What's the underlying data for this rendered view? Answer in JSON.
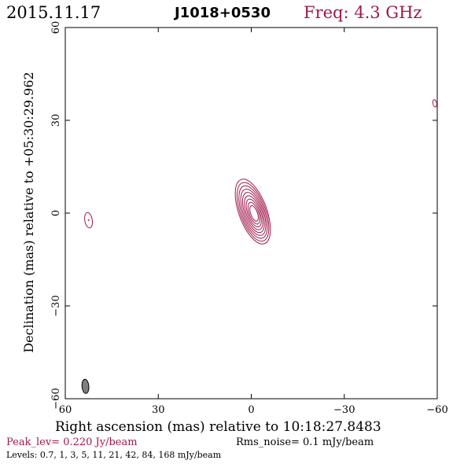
{
  "header": {
    "date": "2015.11.17",
    "source": "J1018+0530",
    "freq_label": "Freq: 4.3 GHz"
  },
  "footer": {
    "peak": "Peak_lev=  0.220 Jy/beam",
    "rms": "Rms_noise=  0.1 mJy/beam",
    "levels": "Levels: 0.7,   1,   3,   5,   11,   21,   42,   84,  168 mJy/beam"
  },
  "colors": {
    "contour": "#a0184a",
    "beam_fill": "#808080",
    "axis": "#000000"
  },
  "chart_data": {
    "type": "contour",
    "xlabel": "Right ascension (mas) relative to 10:18:27.8483",
    "ylabel": "Declination (mas) relative to +05:30:29.962",
    "xlim": [
      60,
      -60
    ],
    "ylim": [
      -60,
      60
    ],
    "x_ticks": [
      60,
      30,
      0,
      -30,
      -60
    ],
    "y_ticks": [
      60,
      30,
      0,
      -30,
      -60
    ],
    "x_tick_labels": [
      "60",
      "30",
      "0",
      "−30",
      "−60"
    ],
    "y_tick_labels": [
      "60",
      "30",
      "0",
      "−30",
      "−60"
    ],
    "contour_levels_mJy": [
      0.7,
      1,
      3,
      5,
      11,
      21,
      42,
      84,
      168
    ],
    "components": [
      {
        "name": "core",
        "x": -0.5,
        "y": 0.5,
        "major_outer": 11,
        "minor_outer": 4.5,
        "pa_deg": 20,
        "n_contours": 9
      },
      {
        "name": "west-feature",
        "x": 52.5,
        "y": -2.3,
        "major_outer": 2.5,
        "minor_outer": 1.2,
        "pa_deg": 10,
        "n_contours": 1,
        "has_dot": true
      },
      {
        "name": "east-feature",
        "x": -59.2,
        "y": 35.5,
        "major_outer": 1.2,
        "minor_outer": 0.6,
        "pa_deg": 10,
        "n_contours": 1
      }
    ],
    "beam": {
      "x": 53.5,
      "y": -56,
      "major": 2.3,
      "minor": 1.1,
      "pa_deg": 5
    }
  }
}
